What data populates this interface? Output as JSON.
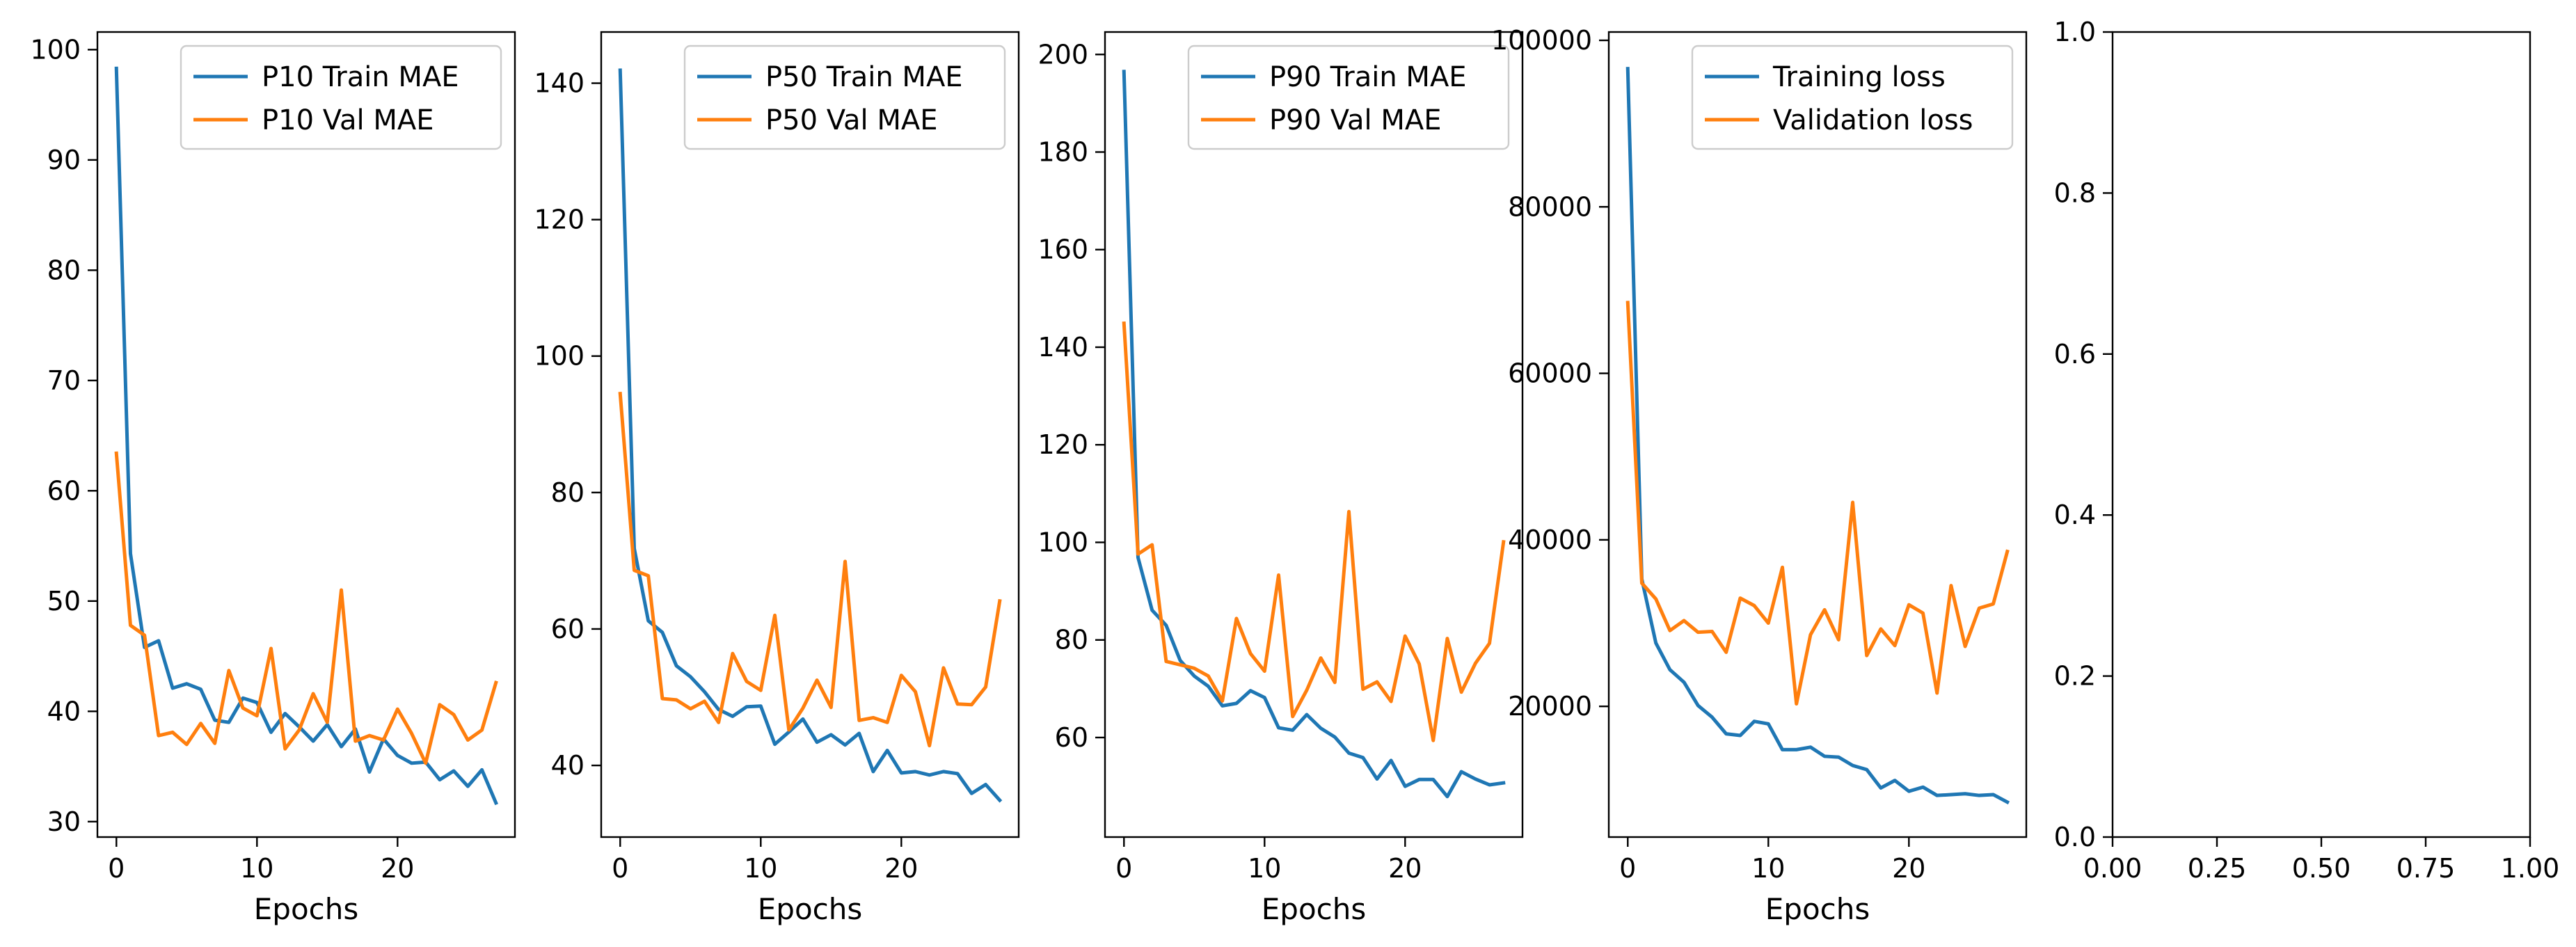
{
  "chart_data": [
    {
      "type": "line",
      "xlabel": "Epochs",
      "ylabel": "",
      "xlim": [
        -1.35,
        28.35
      ],
      "ylim": [
        28.6,
        101.6
      ],
      "xticks": [
        0,
        10,
        20
      ],
      "yticks": [
        30,
        40,
        50,
        60,
        70,
        80,
        90,
        100
      ],
      "grid": false,
      "legend": "top-right",
      "series": [
        {
          "name": "P10 Train MAE",
          "color": "#1f77b4",
          "values": [
            98.3,
            54.3,
            45.8,
            46.4,
            42.1,
            42.5,
            42.0,
            39.2,
            39.0,
            41.2,
            40.8,
            38.1,
            39.8,
            38.6,
            37.3,
            38.8,
            36.8,
            38.4,
            34.5,
            37.5,
            36.0,
            35.3,
            35.4,
            33.8,
            34.6,
            33.2,
            34.7,
            31.7
          ]
        },
        {
          "name": "P10 Val MAE",
          "color": "#ff7f0e",
          "values": [
            63.4,
            47.8,
            46.9,
            37.8,
            38.1,
            37.0,
            38.9,
            37.1,
            43.7,
            40.3,
            39.6,
            45.7,
            36.6,
            38.3,
            41.6,
            39.0,
            51.0,
            37.3,
            37.8,
            37.4,
            40.2,
            38.0,
            35.3,
            40.6,
            39.7,
            37.4,
            38.3,
            42.6
          ]
        }
      ]
    },
    {
      "type": "line",
      "xlabel": "Epochs",
      "ylabel": "",
      "xlim": [
        -1.35,
        28.35
      ],
      "ylim": [
        29.5,
        147.5
      ],
      "xticks": [
        0,
        10,
        20
      ],
      "yticks": [
        40,
        60,
        80,
        100,
        120,
        140
      ],
      "grid": false,
      "legend": "top-right",
      "series": [
        {
          "name": "P50 Train MAE",
          "color": "#1f77b4",
          "values": [
            141.9,
            71.8,
            61.2,
            59.5,
            54.6,
            53.0,
            50.8,
            48.2,
            47.2,
            48.6,
            48.7,
            43.1,
            44.9,
            46.8,
            43.4,
            44.5,
            43.0,
            44.7,
            39.1,
            42.2,
            38.9,
            39.1,
            38.6,
            39.1,
            38.8,
            35.9,
            37.2,
            34.9
          ]
        },
        {
          "name": "P50 Val MAE",
          "color": "#ff7f0e",
          "values": [
            94.5,
            68.6,
            67.8,
            49.8,
            49.6,
            48.3,
            49.4,
            46.3,
            56.4,
            52.3,
            51.0,
            62.0,
            45.2,
            48.4,
            52.5,
            48.5,
            69.9,
            46.6,
            47.0,
            46.3,
            53.2,
            50.8,
            42.9,
            54.3,
            49.0,
            48.9,
            51.5,
            64.1
          ]
        }
      ]
    },
    {
      "type": "line",
      "xlabel": "Epochs",
      "ylabel": "",
      "xlim": [
        -1.35,
        28.35
      ],
      "ylim": [
        39.6,
        204.6
      ],
      "xticks": [
        0,
        10,
        20
      ],
      "yticks": [
        60,
        80,
        100,
        120,
        140,
        160,
        180,
        200
      ],
      "grid": false,
      "legend": "top-right",
      "series": [
        {
          "name": "P90 Train MAE",
          "color": "#1f77b4",
          "values": [
            196.5,
            96.9,
            86.1,
            83.0,
            75.8,
            72.6,
            70.5,
            66.5,
            67.0,
            69.6,
            68.2,
            62.0,
            61.5,
            64.7,
            61.9,
            60.1,
            56.8,
            55.9,
            51.5,
            55.3,
            50.0,
            51.4,
            51.4,
            47.9,
            53.0,
            51.5,
            50.3,
            50.7
          ]
        },
        {
          "name": "P90 Val MAE",
          "color": "#ff7f0e",
          "values": [
            144.9,
            97.6,
            99.5,
            75.6,
            74.9,
            74.2,
            72.6,
            67.5,
            84.4,
            77.2,
            73.6,
            93.3,
            64.3,
            69.7,
            76.3,
            71.3,
            106.3,
            69.9,
            71.4,
            67.4,
            80.8,
            75.1,
            59.4,
            80.3,
            69.3,
            75.2,
            79.3,
            100.1
          ]
        }
      ]
    },
    {
      "type": "line",
      "xlabel": "Epochs",
      "ylabel": "",
      "xlim": [
        -1.35,
        28.35
      ],
      "ylim": [
        4300,
        101000
      ],
      "xticks": [
        0,
        10,
        20
      ],
      "yticks": [
        20000,
        40000,
        60000,
        80000,
        100000
      ],
      "grid": false,
      "legend": "top-right",
      "series": [
        {
          "name": "Training loss",
          "color": "#1f77b4",
          "values": [
            96600,
            35300,
            27600,
            24400,
            22900,
            20100,
            18700,
            16700,
            16500,
            18200,
            17900,
            14800,
            14800,
            15100,
            14000,
            13900,
            12900,
            12400,
            10200,
            11100,
            9800,
            10300,
            9300,
            9400,
            9500,
            9300,
            9400,
            8500
          ]
        },
        {
          "name": "Validation loss",
          "color": "#ff7f0e",
          "values": [
            68500,
            34800,
            32900,
            29100,
            30300,
            28900,
            29000,
            26500,
            33000,
            32100,
            30000,
            36700,
            20300,
            28600,
            31600,
            28000,
            44500,
            26100,
            29300,
            27300,
            32200,
            31200,
            21600,
            34500,
            27200,
            31800,
            32300,
            38600
          ]
        }
      ]
    },
    {
      "type": "line",
      "xlabel": "",
      "ylabel": "",
      "xlim": [
        0,
        1
      ],
      "ylim": [
        0,
        1
      ],
      "xtick_labels": [
        "0.00",
        "0.25",
        "0.50",
        "0.75",
        "1.00"
      ],
      "ytick_labels": [
        "0.0",
        "0.2",
        "0.4",
        "0.6",
        "0.8",
        "1.0"
      ],
      "grid": false,
      "series": []
    }
  ]
}
